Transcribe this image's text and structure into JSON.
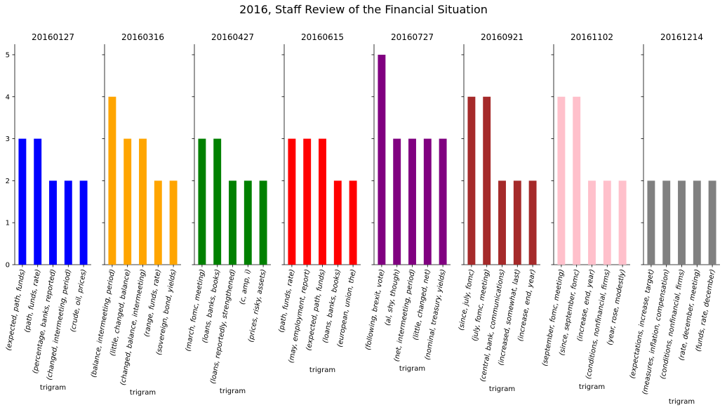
{
  "figure": {
    "title": "2016, Staff Review of the Financial Situation"
  },
  "chart_data": [
    {
      "type": "bar",
      "title": "20160127",
      "xlabel": "trigram",
      "ylabel": "",
      "ylim": [
        0,
        5.25
      ],
      "yticks": [
        0,
        1,
        2,
        3,
        4,
        5
      ],
      "color": "#0000ff",
      "categories": [
        "(expected, path, funds)",
        "(path, funds, rate)",
        "(percentage, banks, reported)",
        "(changed, intermeeting, period)",
        "(crude, oil, prices)"
      ],
      "values": [
        3,
        3,
        2,
        2,
        2
      ]
    },
    {
      "type": "bar",
      "title": "20160316",
      "xlabel": "trigram",
      "ylabel": "",
      "ylim": [
        0,
        5.25
      ],
      "yticks": [
        0,
        1,
        2,
        3,
        4,
        5
      ],
      "color": "#ffa500",
      "categories": [
        "(balance, intermeeting, period)",
        "(little, changed, balance)",
        "(changed, balance, intermeeting)",
        "(range, funds, rate)",
        "(sovereign, bond, yields)"
      ],
      "values": [
        4,
        3,
        3,
        2,
        2
      ]
    },
    {
      "type": "bar",
      "title": "20160427",
      "xlabel": "trigram",
      "ylabel": "",
      "ylim": [
        0,
        5.25
      ],
      "yticks": [
        0,
        1,
        2,
        3,
        4,
        5
      ],
      "color": "#008000",
      "categories": [
        "(march, fomc, meeting)",
        "(loans, banks, books)",
        "(loans, reportedly, strengthened)",
        "(c, amp, i)",
        "(prices, risky, assets)"
      ],
      "values": [
        3,
        3,
        2,
        2,
        2
      ]
    },
    {
      "type": "bar",
      "title": "20160615",
      "xlabel": "trigram",
      "ylabel": "",
      "ylim": [
        0,
        5.25
      ],
      "yticks": [
        0,
        1,
        2,
        3,
        4,
        5
      ],
      "color": "#ff0000",
      "categories": [
        "(path, funds, rate)",
        "(may, employment, report)",
        "(expected, path, funds)",
        "(loans, banks, books)",
        "(european, union, the)"
      ],
      "values": [
        3,
        3,
        3,
        2,
        2
      ]
    },
    {
      "type": "bar",
      "title": "20160727",
      "xlabel": "trigram",
      "ylabel": "",
      "ylim": [
        0,
        5.25
      ],
      "yticks": [
        0,
        1,
        2,
        3,
        4,
        5
      ],
      "color": "#800080",
      "categories": [
        "(following, brexit, vote)",
        "(al, shy, though)",
        "(net, intermeeting, period)",
        "(little, changed, net)",
        "(nominal, treasury, yields)"
      ],
      "values": [
        5,
        3,
        3,
        3,
        3
      ]
    },
    {
      "type": "bar",
      "title": "20160921",
      "xlabel": "trigram",
      "ylabel": "",
      "ylim": [
        0,
        5.25
      ],
      "yticks": [
        0,
        1,
        2,
        3,
        4,
        5
      ],
      "color": "#a52a2a",
      "categories": [
        "(since, july, fomc)",
        "(july, fomc, meeting)",
        "(central, bank, communications)",
        "(increased, somewhat, last)",
        "(increase, end, year)"
      ],
      "values": [
        4,
        4,
        2,
        2,
        2
      ]
    },
    {
      "type": "bar",
      "title": "20161102",
      "xlabel": "trigram",
      "ylabel": "",
      "ylim": [
        0,
        5.25
      ],
      "yticks": [
        0,
        1,
        2,
        3,
        4,
        5
      ],
      "color": "#ffc0cb",
      "categories": [
        "(september, fomc, meeting)",
        "(since, september, fomc)",
        "(increase, end, year)",
        "(conditions, nonfinancial, firms)",
        "(year, rose, modestly)"
      ],
      "values": [
        4,
        4,
        2,
        2,
        2
      ]
    },
    {
      "type": "bar",
      "title": "20161214",
      "xlabel": "trigram",
      "ylabel": "",
      "ylim": [
        0,
        5.25
      ],
      "yticks": [
        0,
        1,
        2,
        3,
        4,
        5
      ],
      "color": "#808080",
      "categories": [
        "(expectations, increase, target)",
        "(measures, inflation, compensation)",
        "(conditions, nonfinancial, firms)",
        "(rate, december, meeting)",
        "(funds, rate, december)"
      ],
      "values": [
        2,
        2,
        2,
        2,
        2
      ]
    }
  ]
}
